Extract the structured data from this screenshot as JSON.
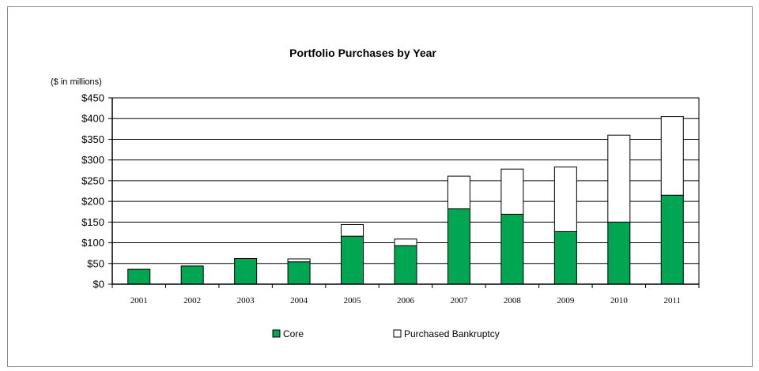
{
  "chart_data": {
    "type": "bar",
    "stacked": true,
    "title": "Portfolio Purchases by Year",
    "unit_label": "($ in millions)",
    "xlabel": "",
    "ylabel": "",
    "categories": [
      "2001",
      "2002",
      "2003",
      "2004",
      "2005",
      "2006",
      "2007",
      "2008",
      "2009",
      "2010",
      "2011"
    ],
    "series": [
      {
        "name": "Core",
        "color": "#00a651",
        "values": [
          36,
          44,
          62,
          54,
          116,
          93,
          182,
          169,
          127,
          150,
          215
        ]
      },
      {
        "name": "Purchased Bankruptcy",
        "color": "#ffffff",
        "values": [
          0,
          0,
          0,
          7,
          28,
          16,
          79,
          109,
          156,
          210,
          190
        ]
      }
    ],
    "ylim": [
      0,
      450
    ],
    "yticks": [
      0,
      50,
      100,
      150,
      200,
      250,
      300,
      350,
      400,
      450
    ],
    "ytick_labels": [
      "$0",
      "$50",
      "$100",
      "$150",
      "$200",
      "$250",
      "$300",
      "$350",
      "$400",
      "$450"
    ],
    "grid": true,
    "legend_position": "bottom"
  }
}
